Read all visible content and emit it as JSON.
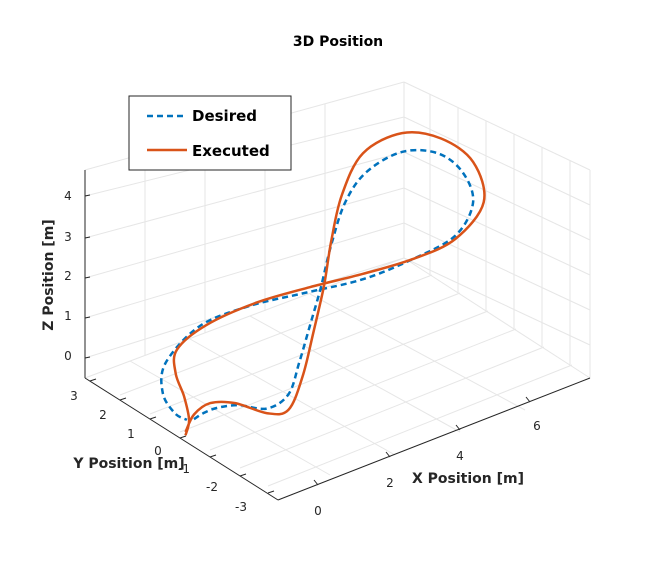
{
  "chart_data": {
    "type": "line",
    "title": "3D Position",
    "xlabel": "X Position [m]",
    "ylabel": "Y Position [m]",
    "zlabel": "Z Position [m]",
    "xticks": [
      "0",
      "2",
      "4",
      "6"
    ],
    "yticks": [
      "3",
      "2",
      "1",
      "0",
      "-1",
      "-2",
      "-3"
    ],
    "zticks": [
      "0",
      "1",
      "2",
      "3",
      "4"
    ],
    "grid": true,
    "legend_position": "top-left",
    "series": [
      {
        "name": "Desired",
        "style": "dashed",
        "color": "#0072BD",
        "points": [
          [
            0.62,
            0.31
          ],
          [
            0.75,
            0.4
          ],
          [
            0.95,
            0.48
          ],
          [
            1.25,
            0.52
          ],
          [
            1.65,
            0.47
          ],
          [
            1.95,
            0.68
          ],
          [
            2.1,
            1.15
          ],
          [
            2.25,
            1.7
          ],
          [
            2.4,
            2.25
          ],
          [
            2.55,
            2.9
          ],
          [
            2.75,
            3.55
          ],
          [
            3.05,
            4.0
          ],
          [
            3.55,
            4.3
          ],
          [
            4.05,
            4.28
          ],
          [
            4.4,
            4.0
          ],
          [
            4.55,
            3.55
          ],
          [
            4.3,
            3.05
          ],
          [
            3.7,
            2.7
          ],
          [
            3.0,
            2.4
          ],
          [
            2.2,
            2.2
          ],
          [
            1.4,
            2.0
          ],
          [
            0.7,
            1.7
          ],
          [
            0.22,
            1.15
          ],
          [
            0.18,
            0.7
          ],
          [
            0.35,
            0.4
          ],
          [
            0.52,
            0.3
          ]
        ]
      },
      {
        "name": "Executed",
        "style": "solid",
        "color": "#D95319",
        "points": [
          [
            0.5,
            0.07
          ],
          [
            0.55,
            0.3
          ],
          [
            0.48,
            0.65
          ],
          [
            0.36,
            1.0
          ],
          [
            0.38,
            1.35
          ],
          [
            0.8,
            1.72
          ],
          [
            1.5,
            2.05
          ],
          [
            2.25,
            2.28
          ],
          [
            3.0,
            2.48
          ],
          [
            3.7,
            2.7
          ],
          [
            4.3,
            3.0
          ],
          [
            4.7,
            3.55
          ],
          [
            4.55,
            4.15
          ],
          [
            4.1,
            4.5
          ],
          [
            3.55,
            4.58
          ],
          [
            3.0,
            4.28
          ],
          [
            2.7,
            3.65
          ],
          [
            2.55,
            2.95
          ],
          [
            2.45,
            2.3
          ],
          [
            2.3,
            1.6
          ],
          [
            2.15,
            0.95
          ],
          [
            1.95,
            0.45
          ],
          [
            1.65,
            0.4
          ],
          [
            1.2,
            0.55
          ],
          [
            0.85,
            0.55
          ],
          [
            0.62,
            0.38
          ],
          [
            0.5,
            0.12
          ]
        ]
      }
    ]
  }
}
